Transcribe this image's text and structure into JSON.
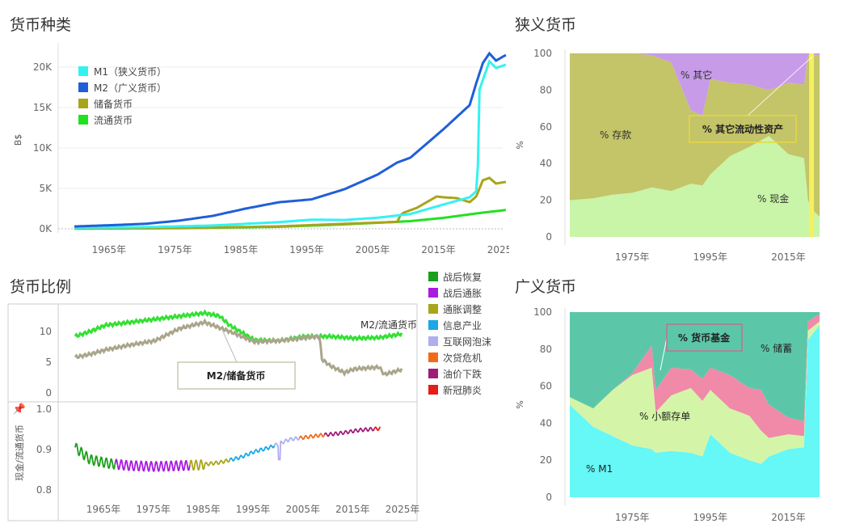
{
  "titles": {
    "money_types": "货币种类",
    "narrow": "狭义货币",
    "ratio": "货币比例",
    "broad": "广义货币"
  },
  "colors": {
    "m1": "#33f2f2",
    "m2": "#1f5fd8",
    "reserve": "#a8a51a",
    "circulation": "#22e022",
    "narrow_deposit": "#c4c468",
    "narrow_other": "#c79be8",
    "narrow_cash": "#c8f5a8",
    "broad_savings": "#5cc7a8",
    "broad_fund": "#f08aa8",
    "broad_small": "#d4f5a8",
    "broad_m1": "#66f7f7",
    "ratio_m2circ": "#33e033",
    "ratio_m2res": "#aaa58a"
  },
  "money_types": {
    "ylabel": "B$",
    "yticks": [
      "0K",
      "5K",
      "10K",
      "15K",
      "20K"
    ],
    "xticks": [
      "1965年",
      "1975年",
      "1985年",
      "1995年",
      "2005年",
      "2015年",
      "2025年"
    ],
    "legend": [
      {
        "label": "M1（狭义货币）",
        "color": "#33f2f2"
      },
      {
        "label": "M2（广义货币）",
        "color": "#1f5fd8"
      },
      {
        "label": "储备货币",
        "color": "#a8a51a"
      },
      {
        "label": "流通货币",
        "color": "#22e022"
      }
    ]
  },
  "narrow": {
    "ylabel": "%",
    "yticks": [
      "0",
      "20",
      "40",
      "60",
      "80",
      "100"
    ],
    "xticks": [
      "1975年",
      "1995年",
      "2015年"
    ],
    "labels": {
      "other": "% 其它",
      "deposit": "% 存款",
      "cash": "% 现金",
      "other_liquid": "% 其它流动性资产"
    }
  },
  "broad": {
    "ylabel": "%",
    "yticks": [
      "0",
      "20",
      "40",
      "60",
      "80",
      "100"
    ],
    "xticks": [
      "1975年",
      "1995年",
      "2015年"
    ],
    "labels": {
      "fund": "% 货币基金",
      "savings": "% 储蓄",
      "small": "% 小额存单",
      "m1": "% M1"
    }
  },
  "ratio": {
    "top_yticks": [
      "0",
      "5",
      "10"
    ],
    "bottom_yticks": [
      "0.8",
      "0.9",
      "1.0"
    ],
    "bottom_ylabel": "现金/流通货币",
    "xticks": [
      "1965年",
      "1975年",
      "1985年",
      "1995年",
      "2005年",
      "2015年",
      "2025年"
    ],
    "label_m2circ": "M2/流通货币",
    "label_m2res": "M2/储备货币"
  },
  "eras": [
    {
      "label": "战后恢复",
      "color": "#1aa01a"
    },
    {
      "label": "战后通胀",
      "color": "#a81ae0"
    },
    {
      "label": "通胀调整",
      "color": "#a8a51a"
    },
    {
      "label": "信息产业",
      "color": "#1aa8e8"
    },
    {
      "label": "互联网泡沫",
      "color": "#b0aef0"
    },
    {
      "label": "次贷危机",
      "color": "#f06a1a"
    },
    {
      "label": "油价下跌",
      "color": "#a01a7a"
    },
    {
      "label": "新冠肺炎",
      "color": "#e81a1a"
    }
  ],
  "chart_data": [
    {
      "type": "line",
      "title": "货币种类",
      "ylabel": "B$",
      "xlim": [
        1959,
        2025
      ],
      "ylim": [
        0,
        22000
      ],
      "series": [
        {
          "name": "M1（狭义货币）",
          "x": [
            1959,
            1970,
            1980,
            1990,
            1995,
            2000,
            2005,
            2010,
            2015,
            2019,
            2020.2,
            2020.4,
            2022,
            2023,
            2024.5
          ],
          "values": [
            140,
            210,
            410,
            820,
            1130,
            1090,
            1370,
            1830,
            3000,
            3900,
            4800,
            17000,
            20700,
            19900,
            20300
          ]
        },
        {
          "name": "M2（广义货币）",
          "x": [
            1959,
            1965,
            1970,
            1975,
            1980,
            1985,
            1990,
            1995,
            2000,
            2005,
            2008,
            2010,
            2015,
            2019,
            2020,
            2021,
            2022,
            2023,
            2024.5
          ],
          "values": [
            290,
            460,
            630,
            1020,
            1600,
            2500,
            3280,
            3640,
            4900,
            6700,
            8200,
            8800,
            12300,
            15300,
            18000,
            20500,
            21700,
            20800,
            21500
          ]
        },
        {
          "name": "储备货币",
          "x": [
            1959,
            1970,
            1980,
            1990,
            2000,
            2008,
            2008.5,
            2009,
            2011,
            2014,
            2015,
            2017,
            2019,
            2020,
            2021,
            2022,
            2023,
            2024.5
          ],
          "values": [
            50,
            80,
            160,
            300,
            620,
            850,
            1700,
            2000,
            2600,
            4000,
            3900,
            3800,
            3300,
            4000,
            6000,
            6300,
            5600,
            5800
          ]
        },
        {
          "name": "流通货币",
          "x": [
            1959,
            1970,
            1980,
            1990,
            2000,
            2010,
            2015,
            2020,
            2024.5
          ],
          "values": [
            30,
            50,
            120,
            250,
            550,
            950,
            1350,
            1900,
            2330
          ]
        }
      ]
    },
    {
      "type": "area",
      "title": "狭义货币",
      "ylabel": "%",
      "ylim": [
        0,
        100
      ],
      "x": [
        1959,
        1965,
        1970,
        1975,
        1980,
        1985,
        1990,
        1993,
        1995,
        2000,
        2005,
        2010,
        2015,
        2019,
        2020,
        2021,
        2023
      ],
      "series": [
        {
          "name": "% 现金",
          "values": [
            20,
            21,
            23,
            24,
            27,
            25,
            29,
            28,
            34,
            44,
            49,
            55,
            45,
            43,
            20,
            15,
            11
          ]
        },
        {
          "name": "% 存款",
          "values": [
            80,
            79,
            77,
            76,
            72,
            70,
            40,
            38,
            52,
            40,
            34,
            25,
            39,
            40,
            79,
            84,
            88
          ]
        },
        {
          "name": "% 其它",
          "values": [
            0,
            0,
            0,
            0,
            1,
            5,
            31,
            34,
            14,
            16,
            17,
            20,
            16,
            17,
            1,
            1,
            1
          ]
        }
      ]
    },
    {
      "type": "line",
      "title": "货币比例",
      "ylim": [
        0,
        14
      ],
      "xlim": [
        1959,
        2025
      ],
      "series": [
        {
          "name": "M2/流通货币",
          "x": [
            1959,
            1962,
            1965,
            1970,
            1975,
            1980,
            1985,
            1988,
            1990,
            1995,
            2000,
            2005,
            2010,
            2015,
            2020,
            2024.5
          ],
          "values": [
            9.2,
            10,
            11,
            11.5,
            12,
            12.5,
            13,
            12.5,
            11,
            8.6,
            8.5,
            9.2,
            9.2,
            8.9,
            9,
            9.6
          ]
        },
        {
          "name": "M2/储备货币",
          "x": [
            1959,
            1962,
            1965,
            1970,
            1975,
            1980,
            1985,
            1990,
            1995,
            2000,
            2008,
            2008.5,
            2010,
            2013,
            2015,
            2020,
            2021,
            2024.5
          ],
          "values": [
            5.8,
            6.3,
            7,
            7.8,
            8.5,
            10.5,
            11.5,
            10,
            8.3,
            8.5,
            9.2,
            5.5,
            4.5,
            3.3,
            3.9,
            4.2,
            3,
            3.8
          ]
        }
      ]
    },
    {
      "type": "line",
      "title": "现金/流通货币",
      "ylabel": "现金/流通货币",
      "ylim": [
        0.8,
        1.0
      ],
      "xlim": [
        1959,
        2025
      ],
      "series": [
        {
          "name": "现金/流通货币",
          "x": [
            1959,
            1962,
            1966,
            1970,
            1975,
            1980,
            1984,
            1988,
            1992,
            1995,
            1998,
            2000,
            2002,
            2005,
            2008,
            2012,
            2016,
            2020,
            2022,
            2024.5
          ],
          "values": [
            0.905,
            0.875,
            0.865,
            0.86,
            0.858,
            0.86,
            0.862,
            0.868,
            0.88,
            0.895,
            0.905,
            0.915,
            0.925,
            0.93,
            0.935,
            0.94,
            0.948,
            0.952,
            0.955,
            0.96
          ]
        }
      ]
    },
    {
      "type": "area",
      "title": "广义货币",
      "ylabel": "%",
      "ylim": [
        0,
        100
      ],
      "x": [
        1959,
        1965,
        1970,
        1975,
        1980,
        1981,
        1985,
        1990,
        1993,
        1995,
        2000,
        2005,
        2008,
        2010,
        2015,
        2019,
        2020,
        2023
      ],
      "series": [
        {
          "name": "% M1",
          "values": [
            50,
            38,
            33,
            28,
            26,
            24,
            25,
            24,
            22,
            34,
            24,
            20,
            18,
            22,
            26,
            27,
            85,
            93
          ]
        },
        {
          "name": "% 小额存单",
          "values": [
            4,
            10,
            25,
            38,
            44,
            22,
            30,
            35,
            30,
            24,
            24,
            24,
            18,
            10,
            8,
            6,
            5,
            2
          ]
        },
        {
          "name": "% 货币基金",
          "values": [
            0,
            0,
            0,
            1,
            12,
            12,
            15,
            10,
            12,
            12,
            18,
            15,
            22,
            18,
            9,
            8,
            5,
            4
          ]
        },
        {
          "name": "% 储蓄",
          "values": [
            46,
            52,
            42,
            33,
            18,
            42,
            30,
            31,
            36,
            30,
            34,
            41,
            42,
            50,
            57,
            59,
            5,
            1
          ]
        }
      ]
    }
  ]
}
